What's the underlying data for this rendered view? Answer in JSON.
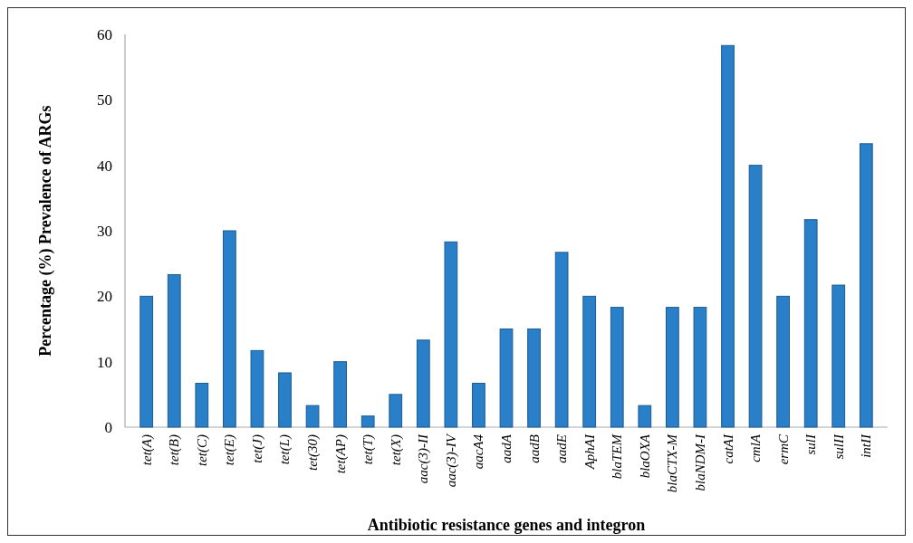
{
  "chart_data": {
    "type": "bar",
    "xlabel": "Antibiotic resistance genes and integron",
    "ylabel": "Percentage (%) Prevalence of ARGs",
    "categories": [
      "tet(A)",
      "tet(B)",
      "tet(C)",
      "tet(E)",
      "tet(J)",
      "tet(L)",
      "tet(30)",
      "tet(AP)",
      "tet(T)",
      "tet(X)",
      "aac(3)-II",
      "aac(3)-IV",
      "aacA4",
      "aadA",
      "aadB",
      "aadE",
      "AphAI",
      "blaTEM",
      "blaOXA",
      "blaCTX-M",
      "blaNDM-I",
      "catAI",
      "cmlA",
      "ermC",
      "sulI",
      "sulII",
      "intII"
    ],
    "values": [
      20,
      23.3,
      6.7,
      30,
      11.7,
      8.3,
      3.3,
      10,
      1.7,
      5,
      13.3,
      28.3,
      6.7,
      15,
      15,
      26.7,
      20,
      18.3,
      3.3,
      18.3,
      18.3,
      58.3,
      40,
      20,
      31.7,
      21.7,
      43.3
    ],
    "color": "#2a7fc9",
    "ylim": [
      0,
      60
    ],
    "yticks": [
      0,
      10,
      20,
      30,
      40,
      50,
      60
    ],
    "grid": false
  }
}
